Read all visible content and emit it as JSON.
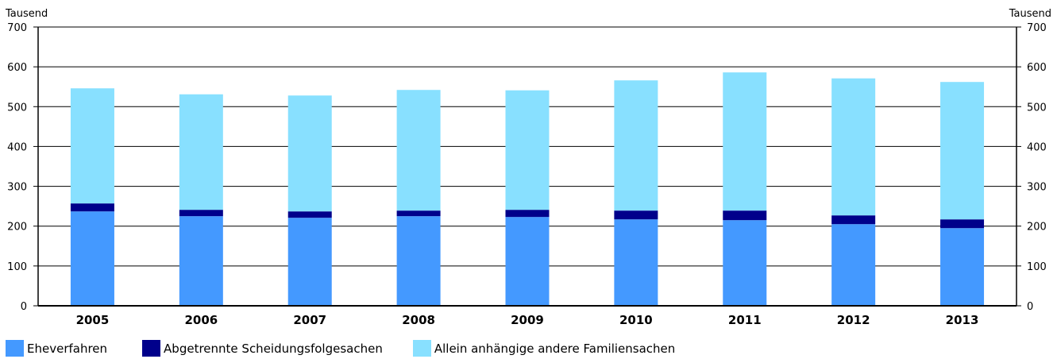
{
  "chart_data": {
    "type": "bar",
    "stacked": true,
    "y_unit_label_left": "Tausend",
    "y_unit_label_right": "Tausend",
    "ylim": [
      0,
      700
    ],
    "y_ticks": [
      0,
      100,
      200,
      300,
      400,
      500,
      600,
      700
    ],
    "grid": true,
    "legend_position": "bottom-left",
    "categories": [
      "2005",
      "2006",
      "2007",
      "2008",
      "2009",
      "2010",
      "2011",
      "2012",
      "2013"
    ],
    "series": [
      {
        "name": "Eheverfahren",
        "color": "#4499ff",
        "values": [
          237,
          225,
          221,
          225,
          223,
          217,
          215,
          205,
          195
        ]
      },
      {
        "name": "Abgetrennte Scheidungsfolgesachen",
        "color": "#00008b",
        "values": [
          20,
          16,
          16,
          14,
          18,
          22,
          24,
          22,
          22
        ]
      },
      {
        "name": "Allein anhängige andere Familiensachen",
        "color": "#88e0ff",
        "values": [
          289,
          290,
          291,
          303,
          300,
          327,
          347,
          344,
          345
        ]
      }
    ]
  }
}
